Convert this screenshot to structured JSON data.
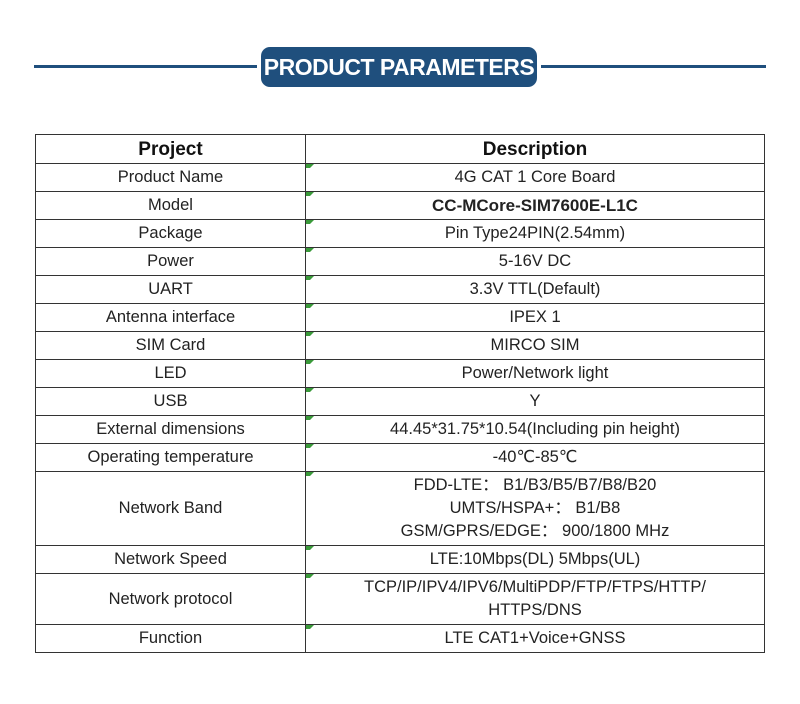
{
  "header": {
    "title": "PRODUCT PARAMETERS",
    "accent": "#1f4f7d"
  },
  "table": {
    "columns": [
      "Project",
      "Description"
    ],
    "rows": [
      {
        "label": "Product Name",
        "value": [
          "4G CAT 1 Core Board"
        ]
      },
      {
        "label": "Model",
        "value": [
          "CC-MCore-SIM7600E-L1C"
        ],
        "bold": true
      },
      {
        "label": "Package",
        "value": [
          "Pin Type24PIN(2.54mm)"
        ]
      },
      {
        "label": "Power",
        "value": [
          "5-16V DC"
        ]
      },
      {
        "label": "UART",
        "value": [
          "3.3V TTL(Default)"
        ]
      },
      {
        "label": "Antenna interface",
        "value": [
          "IPEX 1"
        ]
      },
      {
        "label": "SIM Card",
        "value": [
          "MIRCO SIM"
        ]
      },
      {
        "label": "LED",
        "value": [
          "Power/Network light"
        ]
      },
      {
        "label": "USB",
        "value": [
          "Y"
        ]
      },
      {
        "label": "External dimensions",
        "value": [
          "44.45*31.75*10.54(Including pin height)"
        ]
      },
      {
        "label": "Operating temperature",
        "value": [
          "-40℃-85℃"
        ]
      },
      {
        "label": "Network Band",
        "value": [
          "FDD-LTE： B1/B3/B5/B7/B8/B20",
          "UMTS/HSPA+： B1/B8",
          "GSM/GPRS/EDGE： 900/1800 MHz"
        ]
      },
      {
        "label": "Network Speed",
        "value": [
          "LTE:10Mbps(DL)  5Mbps(UL)"
        ]
      },
      {
        "label": "Network protocol",
        "value": [
          "TCP/IP/IPV4/IPV6/MultiPDP/FTP/FTPS/HTTP/",
          "HTTPS/DNS"
        ]
      },
      {
        "label": "Function",
        "value": [
          "LTE  CAT1+Voice+GNSS"
        ]
      }
    ]
  }
}
